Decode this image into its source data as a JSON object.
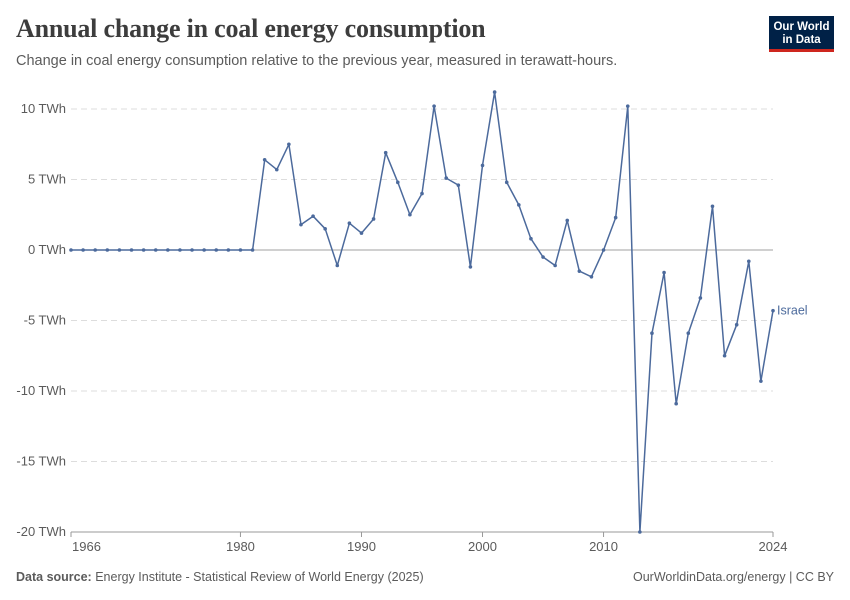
{
  "header": {
    "title": "Annual change in coal energy consumption",
    "subtitle": "Change in coal energy consumption relative to the previous year, measured in terawatt-hours."
  },
  "logo": {
    "line1": "Our World",
    "line2": "in Data"
  },
  "footer": {
    "source_label": "Data source:",
    "source_text": "Energy Institute - Statistical Review of World Energy (2025)",
    "right_text": "OurWorldinData.org/energy | CC BY"
  },
  "colors": {
    "series": "#4c6a9c",
    "grid": "#dddddd",
    "zero_line": "#a1a1a1",
    "text": "#5b5b5b",
    "logo_bg": "#002147",
    "logo_accent": "#ce261e"
  },
  "chart_data": {
    "type": "line",
    "title": "Annual change in coal energy consumption",
    "xlabel": "",
    "ylabel": "",
    "xlim": [
      1966,
      2024
    ],
    "ylim": [
      -20,
      10
    ],
    "y_ticks": [
      10,
      5,
      0,
      -5,
      -10,
      -15,
      -20
    ],
    "y_tick_labels": [
      "10 TWh",
      "5 TWh",
      "0 TWh",
      "-5 TWh",
      "-10 TWh",
      "-15 TWh",
      "-20 TWh"
    ],
    "x_ticks": [
      1966,
      1980,
      1990,
      2000,
      2010,
      2024
    ],
    "x_tick_labels": [
      "1966",
      "1980",
      "1990",
      "2000",
      "2010",
      "2024"
    ],
    "grid": "horizontal dashed",
    "legend": "end-of-line label",
    "series": [
      {
        "name": "Israel",
        "x": [
          1966,
          1967,
          1968,
          1969,
          1970,
          1971,
          1972,
          1973,
          1974,
          1975,
          1976,
          1977,
          1978,
          1979,
          1980,
          1981,
          1982,
          1983,
          1984,
          1985,
          1986,
          1987,
          1988,
          1989,
          1990,
          1991,
          1992,
          1993,
          1994,
          1995,
          1996,
          1997,
          1998,
          1999,
          2000,
          2001,
          2002,
          2003,
          2004,
          2005,
          2006,
          2007,
          2008,
          2009,
          2010,
          2011,
          2012,
          2013,
          2014,
          2015,
          2016,
          2017,
          2018,
          2019,
          2020,
          2021,
          2022,
          2023,
          2024
        ],
        "values": [
          0,
          0,
          0,
          0,
          0,
          0,
          0,
          0,
          0,
          0,
          0,
          0,
          0,
          0,
          0,
          0,
          6.4,
          5.7,
          7.5,
          1.8,
          2.4,
          1.5,
          -1.1,
          1.9,
          1.2,
          2.2,
          6.9,
          4.8,
          2.5,
          4.0,
          10.2,
          5.1,
          4.6,
          -1.2,
          6.0,
          11.2,
          4.8,
          3.2,
          0.8,
          -0.5,
          -1.1,
          2.1,
          -1.5,
          -1.9,
          0,
          2.3,
          10.2,
          -20.0,
          -5.9,
          -1.6,
          -10.9,
          -5.9,
          -3.4,
          3.1,
          -7.5,
          -5.3,
          -0.8,
          -9.3,
          -4.3
        ]
      }
    ]
  }
}
